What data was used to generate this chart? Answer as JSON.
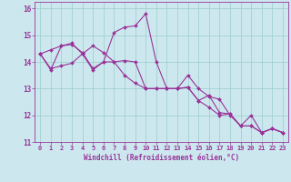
{
  "xlabel": "Windchill (Refroidissement éolien,°C)",
  "bg_color": "#cce8ee",
  "line_color": "#993399",
  "marker_color": "#993399",
  "x": [
    0,
    1,
    2,
    3,
    4,
    5,
    6,
    7,
    8,
    9,
    10,
    11,
    12,
    13,
    14,
    15,
    16,
    17,
    18,
    19,
    20,
    21,
    22,
    23
  ],
  "y_main": [
    14.3,
    13.7,
    14.6,
    14.7,
    14.3,
    13.7,
    14.0,
    15.1,
    15.3,
    15.35,
    15.8,
    14.0,
    13.0,
    13.0,
    13.5,
    13.0,
    12.7,
    12.6,
    12.0,
    11.6,
    11.6,
    11.35,
    11.5,
    11.35
  ],
  "y_trend1": [
    14.3,
    14.45,
    14.6,
    14.65,
    14.35,
    13.75,
    14.0,
    14.0,
    14.05,
    14.0,
    13.0,
    13.0,
    13.0,
    13.0,
    13.05,
    12.55,
    12.75,
    12.1,
    12.05,
    11.6,
    12.0,
    11.35,
    11.5,
    11.35
  ],
  "y_trend2": [
    14.3,
    13.75,
    13.85,
    13.95,
    14.3,
    14.6,
    14.35,
    14.0,
    13.5,
    13.2,
    13.0,
    13.0,
    13.0,
    13.0,
    13.05,
    12.55,
    12.3,
    12.0,
    12.05,
    11.6,
    11.6,
    11.35,
    11.5,
    11.35
  ],
  "ylim": [
    11.0,
    16.25
  ],
  "xlim": [
    -0.5,
    23.5
  ],
  "yticks": [
    11,
    12,
    13,
    14,
    15,
    16
  ],
  "xticks": [
    0,
    1,
    2,
    3,
    4,
    5,
    6,
    7,
    8,
    9,
    10,
    11,
    12,
    13,
    14,
    15,
    16,
    17,
    18,
    19,
    20,
    21,
    22,
    23
  ],
  "grid_color": "#99cccc",
  "font_color": "#993399",
  "tick_fontsize": 5.0,
  "xlabel_fontsize": 5.5
}
